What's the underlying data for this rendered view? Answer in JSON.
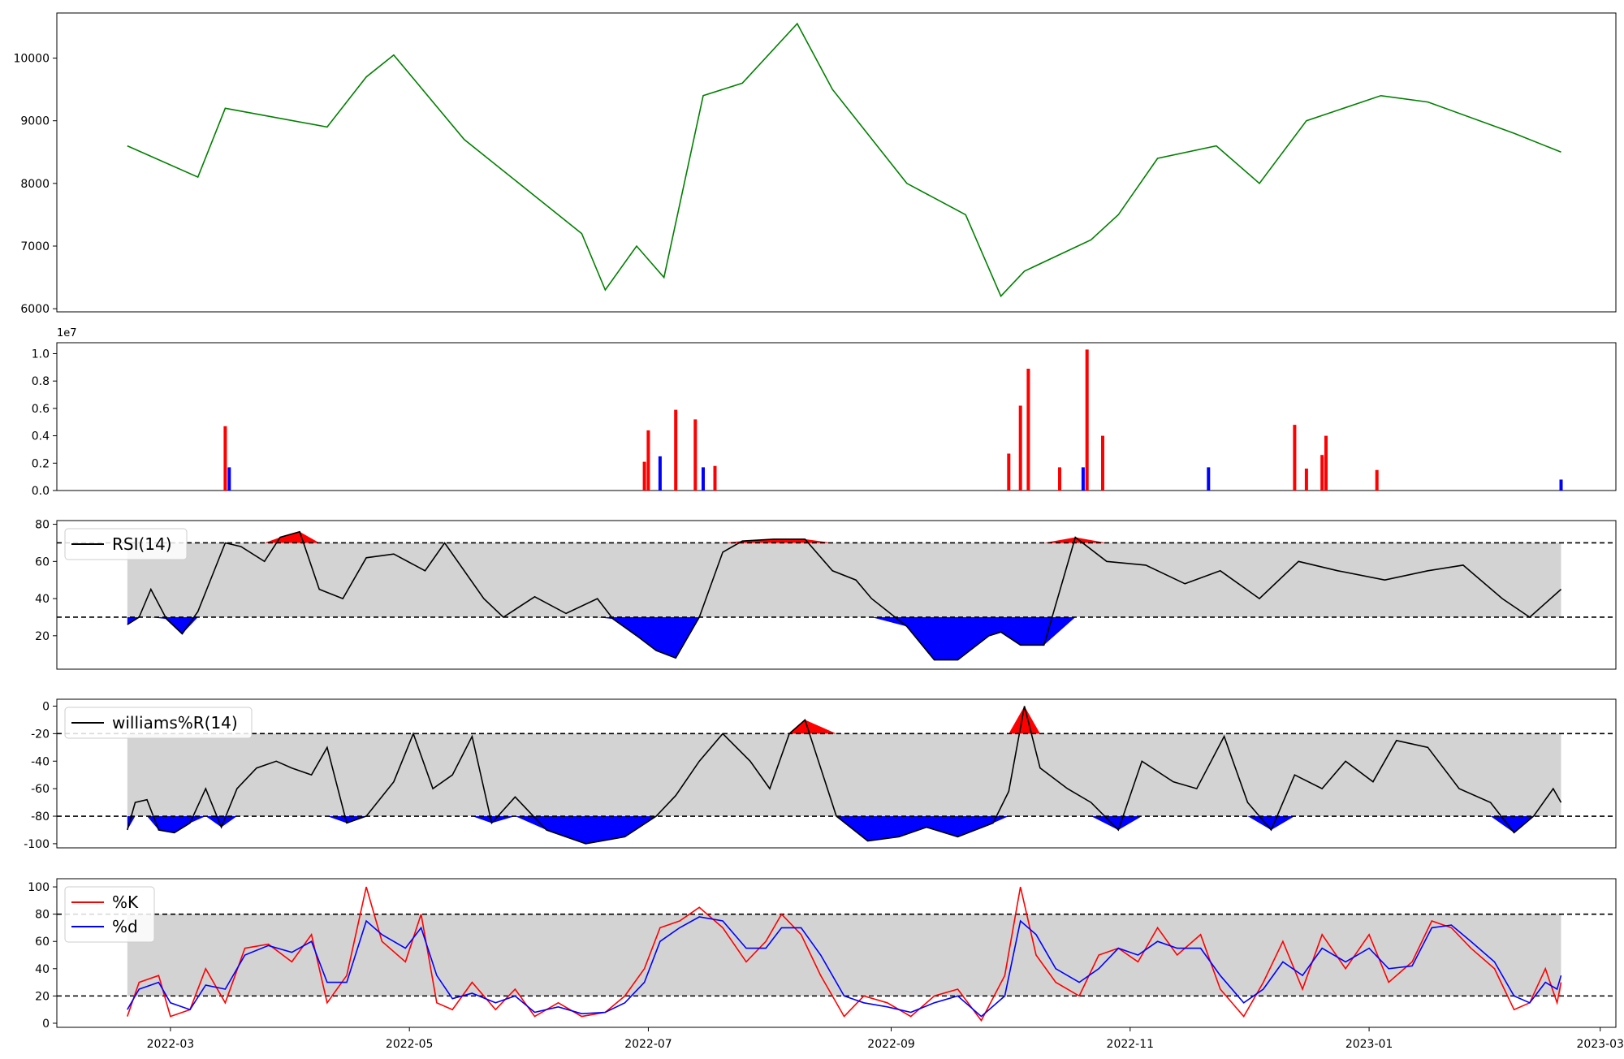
{
  "figure": {
    "background": "#ffffff"
  },
  "x_axis": {
    "ticks": [
      "2022-03",
      "2022-05",
      "2022-07",
      "2022-09",
      "2022-11",
      "2023-01",
      "2023-03"
    ],
    "range": [
      "2022-01-31",
      "2023-03-05"
    ]
  },
  "chart_data": [
    {
      "id": "price",
      "type": "line",
      "color": "#008000",
      "ylim": [
        5950,
        10720
      ],
      "yticks": [
        6000,
        7000,
        8000,
        9000,
        10000
      ],
      "x": [
        "2022-02-18",
        "2022-03-08",
        "2022-03-15",
        "2022-04-10",
        "2022-04-20",
        "2022-04-27",
        "2022-05-15",
        "2022-06-14",
        "2022-06-20",
        "2022-06-28",
        "2022-07-05",
        "2022-07-15",
        "2022-07-25",
        "2022-08-08",
        "2022-08-17",
        "2022-09-05",
        "2022-09-20",
        "2022-09-29",
        "2022-10-05",
        "2022-10-22",
        "2022-10-29",
        "2022-11-08",
        "2022-11-23",
        "2022-12-04",
        "2022-12-16",
        "2023-01-04",
        "2023-01-16",
        "2023-02-07",
        "2023-02-19"
      ],
      "y": [
        8600,
        8100,
        9200,
        8900,
        9700,
        10050,
        8700,
        7200,
        6300,
        7000,
        6500,
        9400,
        9600,
        10550,
        9500,
        8000,
        7500,
        6200,
        6600,
        7100,
        7500,
        8400,
        8600,
        8000,
        9000,
        9400,
        9300,
        8800,
        8500
      ]
    },
    {
      "id": "volume",
      "type": "bar",
      "exponent_label": "1e7",
      "ylim": [
        0,
        1.08
      ],
      "yticks": [
        "0.0",
        "0.2",
        "0.4",
        "0.6",
        "0.8",
        "1.0"
      ],
      "colors": {
        "up": "#ff0000",
        "down": "#0000ff",
        "flat": "#000000"
      },
      "x": [
        "2022-03-15",
        "2022-03-16",
        "2022-06-30",
        "2022-07-01",
        "2022-07-04",
        "2022-07-08",
        "2022-07-13",
        "2022-07-15",
        "2022-07-18",
        "2022-10-01",
        "2022-10-04",
        "2022-10-06",
        "2022-10-14",
        "2022-10-20",
        "2022-10-21",
        "2022-10-25",
        "2022-11-21",
        "2022-12-13",
        "2022-12-16",
        "2022-12-20",
        "2022-12-21",
        "2023-01-03",
        "2023-02-19"
      ],
      "y": [
        0.47,
        0.17,
        0.21,
        0.44,
        0.25,
        0.59,
        0.52,
        0.17,
        0.18,
        0.27,
        0.62,
        0.89,
        0.17,
        0.17,
        1.03,
        0.4,
        0.17,
        0.48,
        0.16,
        0.26,
        0.4,
        0.15,
        0.08
      ],
      "color_keys": [
        "up",
        "down",
        "up",
        "up",
        "down",
        "up",
        "up",
        "down",
        "up",
        "up",
        "up",
        "up",
        "up",
        "down",
        "up",
        "up",
        "down",
        "up",
        "up",
        "up",
        "up",
        "up",
        "down"
      ]
    },
    {
      "id": "rsi",
      "type": "line",
      "color": "#000000",
      "band_fill": "#d3d3d3",
      "over_fill": "#ff0000",
      "under_fill": "#0000ff",
      "thresholds": [
        70,
        30
      ],
      "ylim": [
        2,
        82
      ],
      "yticks": [
        20,
        40,
        60,
        80
      ],
      "legend": [
        "RSI(14)"
      ],
      "legend_loc": "upper left",
      "x": [
        "2022-02-18",
        "2022-02-21",
        "2022-02-24",
        "2022-02-28",
        "2022-03-04",
        "2022-03-08",
        "2022-03-15",
        "2022-03-19",
        "2022-03-25",
        "2022-03-29",
        "2022-04-03",
        "2022-04-08",
        "2022-04-14",
        "2022-04-20",
        "2022-04-27",
        "2022-05-05",
        "2022-05-10",
        "2022-05-20",
        "2022-05-25",
        "2022-06-02",
        "2022-06-10",
        "2022-06-18",
        "2022-06-22",
        "2022-06-28",
        "2022-07-03",
        "2022-07-08",
        "2022-07-14",
        "2022-07-20",
        "2022-07-25",
        "2022-08-02",
        "2022-08-10",
        "2022-08-17",
        "2022-08-23",
        "2022-08-27",
        "2022-09-05",
        "2022-09-12",
        "2022-09-18",
        "2022-09-26",
        "2022-09-29",
        "2022-10-04",
        "2022-10-10",
        "2022-10-18",
        "2022-10-26",
        "2022-11-05",
        "2022-11-15",
        "2022-11-24",
        "2022-12-04",
        "2022-12-14",
        "2022-12-24",
        "2023-01-05",
        "2023-01-16",
        "2023-01-25",
        "2023-02-04",
        "2023-02-11",
        "2023-02-19"
      ],
      "y": [
        26,
        30,
        45,
        29,
        21,
        33,
        70,
        68,
        60,
        73,
        76,
        45,
        40,
        62,
        64,
        55,
        70,
        40,
        30,
        41,
        32,
        40,
        29,
        20,
        12,
        8,
        30,
        65,
        71,
        72,
        72,
        55,
        50,
        40,
        25,
        7,
        7,
        20,
        22,
        15,
        15,
        73,
        60,
        58,
        48,
        55,
        40,
        60,
        55,
        50,
        55,
        58,
        40,
        30,
        45
      ]
    },
    {
      "id": "williams",
      "type": "line",
      "color": "#000000",
      "band_fill": "#d3d3d3",
      "over_fill": "#ff0000",
      "under_fill": "#0000ff",
      "thresholds": [
        -20,
        -80
      ],
      "ylim": [
        -103,
        5
      ],
      "yticks": [
        0,
        -20,
        -40,
        -60,
        -80,
        -100
      ],
      "legend": [
        "williams%R(14)"
      ],
      "legend_loc": "upper left",
      "x": [
        "2022-02-18",
        "2022-02-20",
        "2022-02-23",
        "2022-02-26",
        "2022-03-02",
        "2022-03-06",
        "2022-03-10",
        "2022-03-14",
        "2022-03-18",
        "2022-03-23",
        "2022-03-28",
        "2022-04-01",
        "2022-04-06",
        "2022-04-10",
        "2022-04-15",
        "2022-04-20",
        "2022-04-27",
        "2022-05-02",
        "2022-05-07",
        "2022-05-12",
        "2022-05-17",
        "2022-05-22",
        "2022-05-28",
        "2022-06-05",
        "2022-06-15",
        "2022-06-25",
        "2022-07-03",
        "2022-07-08",
        "2022-07-14",
        "2022-07-20",
        "2022-07-27",
        "2022-08-01",
        "2022-08-06",
        "2022-08-10",
        "2022-08-18",
        "2022-08-26",
        "2022-09-03",
        "2022-09-10",
        "2022-09-18",
        "2022-09-27",
        "2022-10-01",
        "2022-10-05",
        "2022-10-09",
        "2022-10-16",
        "2022-10-22",
        "2022-10-29",
        "2022-11-04",
        "2022-11-12",
        "2022-11-18",
        "2022-11-25",
        "2022-12-01",
        "2022-12-07",
        "2022-12-13",
        "2022-12-20",
        "2022-12-26",
        "2023-01-02",
        "2023-01-08",
        "2023-01-16",
        "2023-01-24",
        "2023-02-01",
        "2023-02-07",
        "2023-02-12",
        "2023-02-17",
        "2023-02-19"
      ],
      "y": [
        -90,
        -70,
        -68,
        -90,
        -92,
        -85,
        -60,
        -88,
        -60,
        -45,
        -40,
        -45,
        -50,
        -30,
        -85,
        -80,
        -55,
        -20,
        -60,
        -50,
        -22,
        -85,
        -66,
        -90,
        -100,
        -95,
        -80,
        -65,
        -40,
        -20,
        -40,
        -60,
        -20,
        -10,
        -80,
        -98,
        -95,
        -88,
        -95,
        -85,
        -62,
        0,
        -45,
        -60,
        -70,
        -90,
        -40,
        -55,
        -60,
        -22,
        -70,
        -90,
        -50,
        -60,
        -40,
        -55,
        -25,
        -30,
        -60,
        -70,
        -92,
        -80,
        -60,
        -70
      ]
    },
    {
      "id": "stochastic",
      "type": "line",
      "band_fill": "#d3d3d3",
      "thresholds": [
        80,
        20
      ],
      "ylim": [
        -3,
        106
      ],
      "yticks": [
        0,
        20,
        40,
        60,
        80,
        100
      ],
      "legend_loc": "upper left",
      "series": [
        {
          "name": "%K",
          "color": "#ff0000",
          "x": [
            "2022-02-18",
            "2022-02-21",
            "2022-02-26",
            "2022-03-01",
            "2022-03-06",
            "2022-03-10",
            "2022-03-15",
            "2022-03-20",
            "2022-03-26",
            "2022-04-01",
            "2022-04-06",
            "2022-04-10",
            "2022-04-15",
            "2022-04-20",
            "2022-04-24",
            "2022-04-30",
            "2022-05-04",
            "2022-05-08",
            "2022-05-12",
            "2022-05-17",
            "2022-05-23",
            "2022-05-28",
            "2022-06-02",
            "2022-06-08",
            "2022-06-14",
            "2022-06-20",
            "2022-06-25",
            "2022-06-30",
            "2022-07-04",
            "2022-07-09",
            "2022-07-14",
            "2022-07-20",
            "2022-07-26",
            "2022-07-31",
            "2022-08-04",
            "2022-08-09",
            "2022-08-14",
            "2022-08-20",
            "2022-08-25",
            "2022-08-31",
            "2022-09-06",
            "2022-09-12",
            "2022-09-18",
            "2022-09-24",
            "2022-09-30",
            "2022-10-04",
            "2022-10-08",
            "2022-10-13",
            "2022-10-19",
            "2022-10-24",
            "2022-10-29",
            "2022-11-03",
            "2022-11-08",
            "2022-11-13",
            "2022-11-19",
            "2022-11-24",
            "2022-11-30",
            "2022-12-05",
            "2022-12-10",
            "2022-12-15",
            "2022-12-20",
            "2022-12-26",
            "2023-01-01",
            "2023-01-06",
            "2023-01-12",
            "2023-01-17",
            "2023-01-22",
            "2023-01-27",
            "2023-02-02",
            "2023-02-07",
            "2023-02-11",
            "2023-02-15",
            "2023-02-18",
            "2023-02-19"
          ],
          "y": [
            5,
            30,
            35,
            5,
            10,
            40,
            15,
            55,
            58,
            45,
            65,
            15,
            35,
            100,
            60,
            45,
            80,
            15,
            10,
            30,
            10,
            25,
            5,
            15,
            5,
            8,
            20,
            40,
            70,
            75,
            85,
            70,
            45,
            60,
            80,
            65,
            35,
            5,
            20,
            15,
            5,
            20,
            25,
            2,
            35,
            100,
            50,
            30,
            20,
            50,
            55,
            45,
            70,
            50,
            65,
            25,
            5,
            30,
            60,
            25,
            65,
            40,
            65,
            30,
            45,
            75,
            70,
            55,
            40,
            10,
            15,
            40,
            15,
            30
          ]
        },
        {
          "name": "%d",
          "color": "#0000ff",
          "x": [
            "2022-02-18",
            "2022-02-21",
            "2022-02-26",
            "2022-03-01",
            "2022-03-06",
            "2022-03-10",
            "2022-03-15",
            "2022-03-20",
            "2022-03-26",
            "2022-04-01",
            "2022-04-06",
            "2022-04-10",
            "2022-04-15",
            "2022-04-20",
            "2022-04-24",
            "2022-04-30",
            "2022-05-04",
            "2022-05-08",
            "2022-05-12",
            "2022-05-17",
            "2022-05-23",
            "2022-05-28",
            "2022-06-02",
            "2022-06-08",
            "2022-06-14",
            "2022-06-20",
            "2022-06-25",
            "2022-06-30",
            "2022-07-04",
            "2022-07-09",
            "2022-07-14",
            "2022-07-20",
            "2022-07-26",
            "2022-07-31",
            "2022-08-04",
            "2022-08-09",
            "2022-08-14",
            "2022-08-20",
            "2022-08-25",
            "2022-08-31",
            "2022-09-06",
            "2022-09-12",
            "2022-09-18",
            "2022-09-24",
            "2022-09-30",
            "2022-10-04",
            "2022-10-08",
            "2022-10-13",
            "2022-10-19",
            "2022-10-24",
            "2022-10-29",
            "2022-11-03",
            "2022-11-08",
            "2022-11-13",
            "2022-11-19",
            "2022-11-24",
            "2022-11-30",
            "2022-12-05",
            "2022-12-10",
            "2022-12-15",
            "2022-12-20",
            "2022-12-26",
            "2023-01-01",
            "2023-01-06",
            "2023-01-12",
            "2023-01-17",
            "2023-01-22",
            "2023-01-27",
            "2023-02-02",
            "2023-02-07",
            "2023-02-11",
            "2023-02-15",
            "2023-02-18",
            "2023-02-19"
          ],
          "y": [
            10,
            25,
            30,
            15,
            10,
            28,
            25,
            50,
            57,
            52,
            60,
            30,
            30,
            75,
            65,
            55,
            70,
            35,
            18,
            22,
            15,
            20,
            8,
            12,
            7,
            8,
            15,
            30,
            60,
            70,
            78,
            75,
            55,
            55,
            70,
            70,
            50,
            20,
            15,
            12,
            8,
            15,
            20,
            5,
            20,
            75,
            65,
            40,
            30,
            40,
            55,
            50,
            60,
            55,
            55,
            35,
            15,
            25,
            45,
            35,
            55,
            45,
            55,
            40,
            42,
            70,
            72,
            60,
            45,
            20,
            15,
            30,
            25,
            35
          ]
        }
      ]
    }
  ]
}
